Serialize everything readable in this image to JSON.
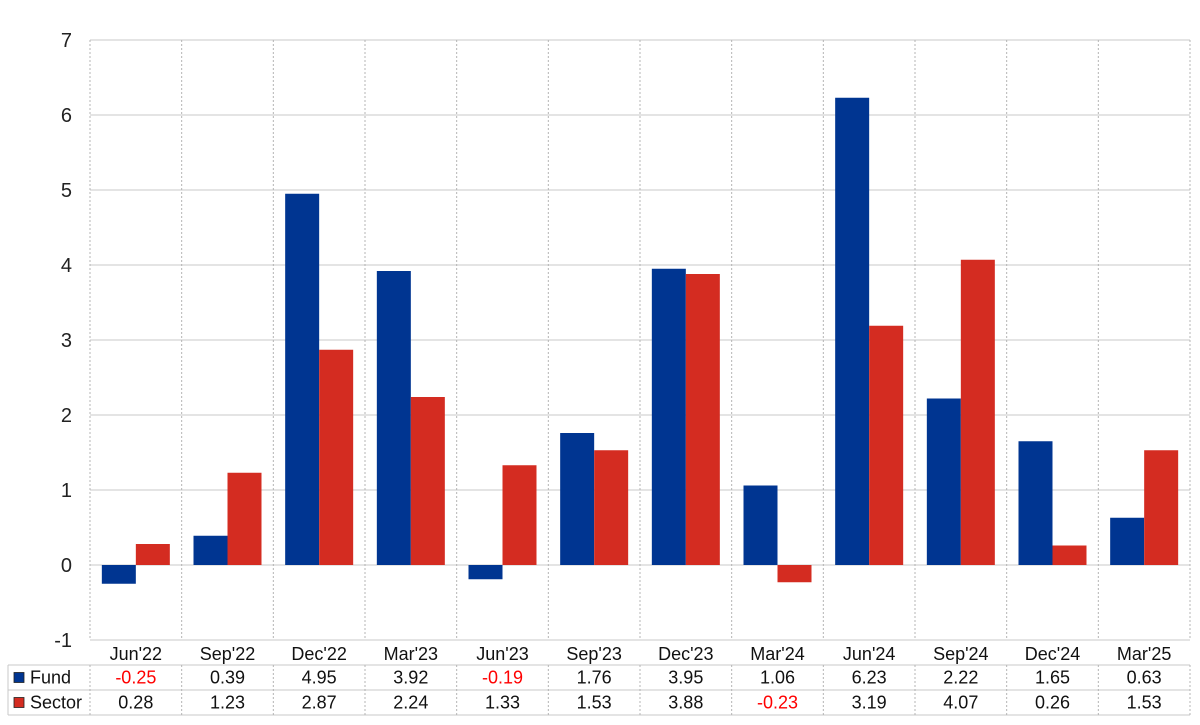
{
  "chart_data": {
    "type": "bar",
    "categories": [
      "Jun'22",
      "Sep'22",
      "Dec'22",
      "Mar'23",
      "Jun'23",
      "Sep'23",
      "Dec'23",
      "Mar'24",
      "Jun'24",
      "Sep'24",
      "Dec'24",
      "Mar'25"
    ],
    "series": [
      {
        "name": "Fund",
        "color": "#003591",
        "values": [
          -0.25,
          0.39,
          4.95,
          3.92,
          -0.19,
          1.76,
          3.95,
          1.06,
          6.23,
          2.22,
          1.65,
          0.63
        ],
        "labels": [
          "-0.25",
          "0.39",
          "4.95",
          "3.92",
          "-0.19",
          "1.76",
          "3.95",
          "1.06",
          "6.23",
          "2.22",
          "1.65",
          "0.63"
        ]
      },
      {
        "name": "Sector",
        "color": "#d42c21",
        "values": [
          0.28,
          1.23,
          2.87,
          2.24,
          1.33,
          1.53,
          3.88,
          -0.23,
          3.19,
          4.07,
          0.26,
          1.53
        ],
        "labels": [
          "0.28",
          "1.23",
          "2.87",
          "2.24",
          "1.33",
          "1.53",
          "3.88",
          "-0.23",
          "3.19",
          "4.07",
          "0.26",
          "1.53"
        ]
      }
    ],
    "yticks": [
      "7",
      "6",
      "5",
      "4",
      "3",
      "2",
      "1",
      "0",
      "-1"
    ],
    "ylim": [
      -1,
      7
    ],
    "title": "",
    "xlabel": "",
    "ylabel": "",
    "grid": true,
    "legend": "data-table-left",
    "negative_color": "#ff0000"
  }
}
